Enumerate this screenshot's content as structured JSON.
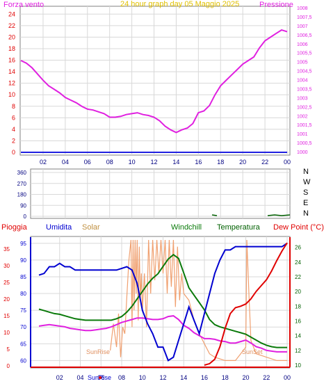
{
  "chart_data": [
    {
      "type": "line",
      "title": "24 hour graph day  05 Maggio 2025",
      "left_label": "Forza vento",
      "right_label": "Pressione",
      "x_ticks": [
        "02",
        "04",
        "06",
        "08",
        "10",
        "12",
        "14",
        "16",
        "18",
        "20",
        "22",
        "00"
      ],
      "left_ticks": [
        "0",
        "2",
        "4",
        "6",
        "8",
        "10",
        "12",
        "14",
        "16",
        "18",
        "20",
        "22",
        "24"
      ],
      "right_ticks": [
        "1000",
        "1000,5",
        "1001",
        "1001,5",
        "1002",
        "1002,5",
        "1003",
        "1003,5",
        "1004",
        "1004,5",
        "1005",
        "1005,5",
        "1006",
        "1006,5",
        "1007",
        "1007,5",
        "1008"
      ],
      "left_range": [
        0,
        25
      ],
      "right_range": [
        1000,
        1008
      ],
      "series": [
        {
          "name": "Pressione",
          "color": "#e020e0",
          "axis": "right",
          "x": [
            0,
            0.5,
            1,
            1.5,
            2,
            2.5,
            3,
            3.5,
            4,
            4.5,
            5,
            5.5,
            6,
            6.5,
            7,
            7.5,
            8,
            8.5,
            9,
            9.5,
            10,
            10.5,
            11,
            11.5,
            12,
            12.5,
            13,
            13.5,
            14,
            14.5,
            15,
            15.5,
            16,
            16.5,
            17,
            17.5,
            18,
            18.5,
            19,
            19.5,
            20,
            20.5,
            21,
            21.5,
            22,
            22.5,
            23,
            23.5,
            24
          ],
          "y": [
            1005.1,
            1004.95,
            1004.7,
            1004.35,
            1004.0,
            1003.7,
            1003.5,
            1003.3,
            1003.05,
            1002.9,
            1002.75,
            1002.55,
            1002.4,
            1002.35,
            1002.25,
            1002.15,
            1001.95,
            1001.95,
            1002.0,
            1002.1,
            1002.15,
            1002.2,
            1002.1,
            1002.05,
            1001.95,
            1001.75,
            1001.45,
            1001.25,
            1001.1,
            1001.25,
            1001.35,
            1001.6,
            1002.2,
            1002.3,
            1002.6,
            1003.2,
            1003.7,
            1004.0,
            1004.3,
            1004.6,
            1004.9,
            1005.1,
            1005.3,
            1005.8,
            1006.2,
            1006.4,
            1006.6,
            1006.8,
            1006.7
          ]
        },
        {
          "name": "Forza vento",
          "color": "#2020e0",
          "axis": "left",
          "x": [
            0,
            24
          ],
          "y": [
            0,
            0
          ]
        }
      ]
    },
    {
      "type": "scatter",
      "y_ticks": [
        "360",
        "270",
        "180",
        "90",
        "0"
      ],
      "y_range": [
        0,
        360
      ],
      "cardinal_labels": [
        "N",
        "W",
        "S",
        "E",
        "N"
      ],
      "x_ticks": [
        "02",
        "04",
        "06",
        "08",
        "10",
        "12",
        "14",
        "16",
        "18",
        "20",
        "22",
        "00"
      ]
    },
    {
      "type": "line",
      "header_labels": {
        "pioggia": "Pioggia",
        "umidita": "Umidita",
        "solar": "Solar",
        "windchill": "Windchill",
        "temperatura": "Temperatura",
        "dewpoint": "Dew Point (°C)"
      },
      "umidita_ticks": [
        "60",
        "65",
        "70",
        "75",
        "80",
        "85",
        "90",
        "95"
      ],
      "pioggia_ticks": [
        "0",
        "5",
        "10",
        "15",
        "20",
        "25",
        "30",
        "35"
      ],
      "temp_ticks": [
        "10",
        "12",
        "14",
        "16",
        "18",
        "20",
        "22",
        "24",
        "26"
      ],
      "x_ticks": [
        "02",
        "04",
        "06",
        "08",
        "10",
        "12",
        "14",
        "16",
        "18",
        "20",
        "22",
        "00"
      ],
      "sunrise_label": "SunRise",
      "sunset_label": "SunSet",
      "x_axis_sunrise": "SunRise",
      "umidita_range": [
        58,
        96
      ],
      "temp_range": [
        10,
        27
      ],
      "series": [
        {
          "name": "Umidita",
          "color": "#0000d0",
          "axis": "left",
          "x": [
            0,
            0.5,
            1,
            1.5,
            2,
            2.5,
            3,
            3.5,
            4,
            4.5,
            5,
            5.5,
            6,
            6.5,
            7,
            7.5,
            8,
            8.5,
            9,
            9.5,
            10,
            10.5,
            11,
            11.5,
            12,
            12.5,
            13,
            13.5,
            14,
            14.5,
            15,
            15.5,
            16,
            16.5,
            17,
            17.5,
            18,
            18.5,
            19,
            19.5,
            20,
            20.5,
            21,
            21.5,
            22,
            22.5,
            23,
            23.5,
            24
          ],
          "y": [
            85.5,
            86,
            88,
            88,
            89,
            88,
            88,
            87,
            87,
            87,
            87,
            87,
            87,
            87,
            87,
            87,
            87.5,
            88,
            87,
            83,
            75,
            71,
            68,
            64,
            64,
            60,
            61,
            66,
            71,
            76,
            72,
            68,
            74,
            80,
            86,
            90,
            93,
            93,
            94,
            94,
            94,
            94,
            94,
            94,
            94,
            94,
            94,
            94,
            95
          ]
        },
        {
          "name": "Windchill",
          "color": "#0a7a0a",
          "axis": "right",
          "x": [
            0,
            0.5,
            1,
            1.5,
            2,
            2.5,
            3,
            3.5,
            4,
            4.5,
            5,
            5.5,
            6,
            6.5,
            7,
            7.5,
            8,
            8.5,
            9,
            9.5,
            10,
            10.5,
            11,
            11.5,
            12,
            12.5,
            13,
            13.5,
            14,
            14.5,
            15,
            15.5,
            16,
            16.5,
            17,
            17.5,
            18,
            18.5,
            19,
            19.5,
            20,
            20.5,
            21,
            21.5,
            22,
            22.5,
            23,
            23.5,
            24
          ],
          "y": [
            17.6,
            17.4,
            17.2,
            17.0,
            16.9,
            16.7,
            16.5,
            16.3,
            16.2,
            16.1,
            16.1,
            16.1,
            16.1,
            16.1,
            16.1,
            16.3,
            16.6,
            17.2,
            18.0,
            19.0,
            20.0,
            21.0,
            21.8,
            22.4,
            23.4,
            24.4,
            25.0,
            24.5,
            22.5,
            20.5,
            19.5,
            18.5,
            17.5,
            16.2,
            15.5,
            15.2,
            15.0,
            14.8,
            14.6,
            14.4,
            14.2,
            13.8,
            13.4,
            13.0,
            12.7,
            12.5,
            12.4,
            12.4,
            12.4
          ]
        },
        {
          "name": "Dew Point",
          "color": "#e020e0",
          "axis": "right",
          "x": [
            0,
            0.5,
            1,
            1.5,
            2,
            2.5,
            3,
            3.5,
            4,
            4.5,
            5,
            5.5,
            6,
            6.5,
            7,
            7.5,
            8,
            8.5,
            9,
            9.5,
            10,
            10.5,
            11,
            11.5,
            12,
            12.5,
            13,
            13.5,
            14,
            14.5,
            15,
            15.5,
            16,
            16.5,
            17,
            17.5,
            18,
            18.5,
            19,
            19.5,
            20,
            20.5,
            21,
            21.5,
            22,
            22.5,
            23,
            23.5,
            24
          ],
          "y": [
            15.3,
            15.4,
            15.5,
            15.4,
            15.3,
            15.2,
            15.0,
            14.9,
            14.8,
            14.7,
            14.7,
            14.8,
            14.9,
            15.0,
            15.2,
            15.5,
            15.8,
            16.0,
            16.2,
            16.4,
            16.4,
            16.3,
            16.2,
            16.2,
            16.3,
            16.6,
            16.7,
            16.2,
            15.4,
            15.0,
            14.4,
            14.0,
            13.6,
            13.6,
            13.5,
            13.3,
            13.2,
            13.0,
            13.0,
            13.2,
            13.4,
            13.0,
            12.5,
            12.3,
            12.0,
            11.9,
            11.8,
            11.8,
            11.8
          ]
        },
        {
          "name": "Temperatura",
          "color": "#e00000",
          "axis": "right",
          "x": [
            16,
            16.5,
            17,
            17.5,
            18,
            18.5,
            19,
            19.5,
            20,
            20.5,
            21,
            21.5,
            22,
            22.5,
            23,
            23.5,
            24
          ],
          "y": [
            10,
            10.2,
            10.8,
            12.5,
            15.0,
            17.0,
            17.8,
            18.0,
            18.3,
            19.0,
            20.0,
            20.8,
            21.6,
            22.8,
            24.2,
            25.5,
            26.6
          ]
        },
        {
          "name": "Solar",
          "color": "#f0a070",
          "axis": "left",
          "x": [
            6.9,
            7.2,
            7.5,
            7.7,
            7.9,
            8.1,
            8.3,
            8.5,
            8.7,
            8.9,
            9.0,
            9.1,
            9.2,
            9.3,
            9.4,
            9.5,
            9.6,
            9.7,
            9.8,
            9.9,
            10.0,
            10.2,
            10.4,
            10.6,
            10.8,
            11.0,
            11.2,
            11.4,
            11.6,
            11.8,
            12.0,
            12.2,
            12.4,
            12.6,
            12.8,
            13.0,
            13.2,
            13.4,
            13.6,
            13.8,
            14.0,
            14.5,
            15.0,
            15.5,
            16.0,
            16.5,
            17.0,
            18.0,
            19.0,
            19.5,
            20.0,
            20.1,
            20.3,
            20.5,
            21.0,
            22.0,
            23.0,
            24.0
          ],
          "y": [
            63,
            71,
            64,
            74,
            61,
            70,
            68,
            79,
            90,
            96,
            70,
            96,
            75,
            96,
            80,
            96,
            72,
            94,
            78,
            86,
            75,
            86,
            70,
            96,
            80,
            96,
            84,
            96,
            86,
            96,
            86,
            96,
            80,
            96,
            82,
            96,
            76,
            94,
            78,
            86,
            80,
            78,
            72,
            68,
            65,
            62,
            61,
            60,
            60,
            62,
            64,
            96,
            80,
            66,
            62,
            61,
            60,
            60
          ]
        }
      ]
    }
  ]
}
